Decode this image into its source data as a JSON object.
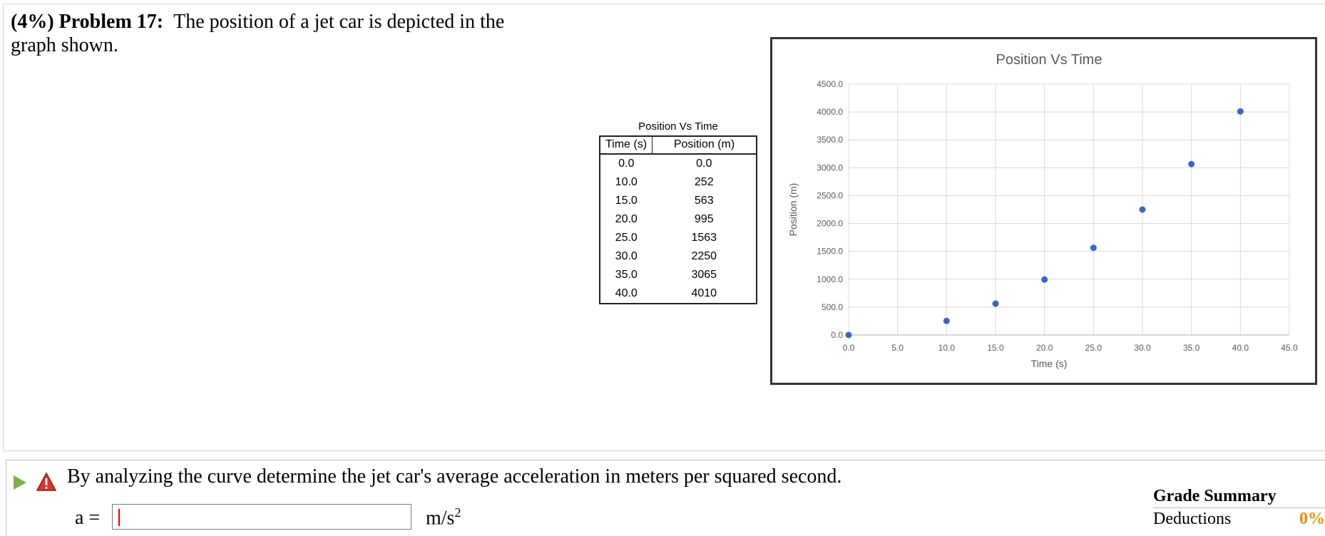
{
  "problem": {
    "weight": "(4%)",
    "number_label": "Problem 17:",
    "text": "The position of a jet car is depicted in the graph shown."
  },
  "data_table": {
    "title": "Position Vs Time",
    "headers": [
      "Time (s)",
      "Position (m)"
    ],
    "rows": [
      [
        "0.0",
        "0.0"
      ],
      [
        "10.0",
        "252"
      ],
      [
        "15.0",
        "563"
      ],
      [
        "20.0",
        "995"
      ],
      [
        "25.0",
        "1563"
      ],
      [
        "30.0",
        "2250"
      ],
      [
        "35.0",
        "3065"
      ],
      [
        "40.0",
        "4010"
      ]
    ]
  },
  "chart_data": {
    "type": "scatter",
    "title": "Position Vs Time",
    "xlabel": "Time (s)",
    "ylabel": "Position (m)",
    "xlim": [
      0,
      45
    ],
    "ylim": [
      0,
      4500
    ],
    "x_ticks": [
      "0.0",
      "5.0",
      "10.0",
      "15.0",
      "20.0",
      "25.0",
      "30.0",
      "35.0",
      "40.0",
      "45.0"
    ],
    "y_ticks": [
      "0.0",
      "500.0",
      "1000.0",
      "1500.0",
      "2000.0",
      "2500.0",
      "3000.0",
      "3500.0",
      "4000.0",
      "4500.0"
    ],
    "grid": true,
    "marker_color": "#3b64c4",
    "series": [
      {
        "x": [
          0,
          10,
          15,
          20,
          25,
          30,
          35,
          40
        ],
        "y": [
          0,
          252,
          563,
          995,
          1563,
          2250,
          3065,
          4010
        ]
      }
    ]
  },
  "question": {
    "text": "By analyzing the curve determine the jet car's average acceleration in meters per squared second.",
    "answer_label": "a =",
    "answer_value": "",
    "unit": "m/s",
    "unit_exponent": "2"
  },
  "grade_summary": {
    "title": "Grade Summary",
    "deductions_label": "Deductions",
    "deductions_value": "0%"
  }
}
